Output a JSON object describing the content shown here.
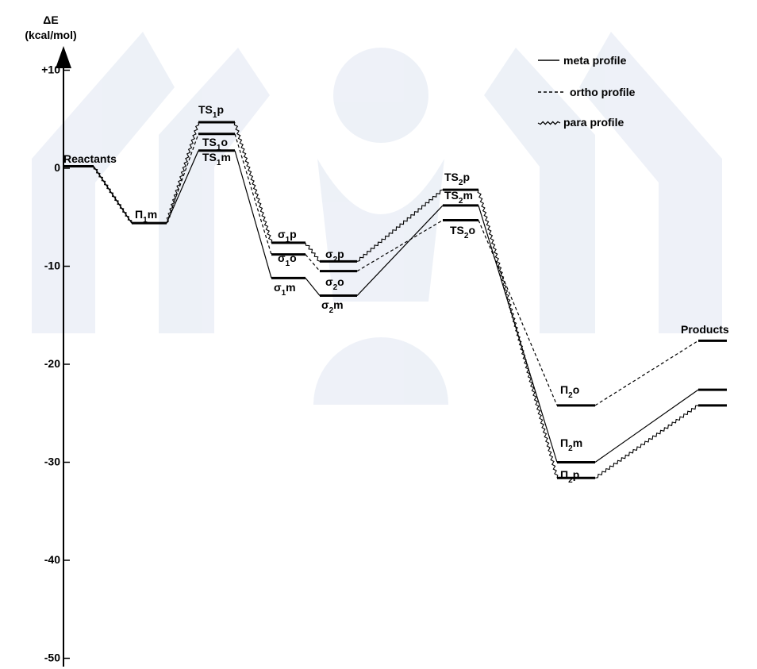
{
  "chart_data": {
    "type": "line",
    "title": "",
    "ylabel_line1": "ΔE",
    "ylabel_line2": "(kcal/mol)",
    "ylim": [
      -55,
      11
    ],
    "yticks": [
      10,
      0,
      -10,
      -20,
      -30,
      -40,
      -50
    ],
    "ytick_labels": [
      "+10",
      "0",
      "-10",
      "-20",
      "-30",
      "-40",
      "-50"
    ],
    "grid": false,
    "legend_position": "top-right",
    "legend": [
      {
        "name": "meta profile",
        "style": "solid"
      },
      {
        "name": "ortho profile",
        "style": "dashed"
      },
      {
        "name": "para profile",
        "style": "wavy"
      }
    ],
    "stages": [
      "Reactants",
      "Π1",
      "TS1",
      "σ1",
      "σ2",
      "TS2",
      "Π2",
      "Products"
    ],
    "series": [
      {
        "name": "meta profile",
        "style": "solid",
        "values": [
          0.2,
          -5.6,
          1.8,
          -11.2,
          -13.0,
          -3.8,
          -30.0,
          -22.6
        ]
      },
      {
        "name": "ortho profile",
        "style": "dashed",
        "values": [
          0.2,
          -5.6,
          3.5,
          -8.8,
          -10.5,
          -5.3,
          -24.2,
          -17.6
        ]
      },
      {
        "name": "para profile",
        "style": "wavy",
        "values": [
          0.2,
          -5.6,
          4.7,
          -7.6,
          -9.5,
          -2.2,
          -31.6,
          -24.2
        ]
      }
    ],
    "level_labels": [
      {
        "text": "Reactants"
      },
      {
        "text": "Π",
        "sub": "1",
        "suffix": "m"
      },
      {
        "text": "TS",
        "sub": "1",
        "suffix": "p"
      },
      {
        "text": "TS",
        "sub": "1",
        "suffix": "o"
      },
      {
        "text": "TS",
        "sub": "1",
        "suffix": "m"
      },
      {
        "text": "σ",
        "sub": "1",
        "suffix": "p"
      },
      {
        "text": "σ",
        "sub": "1",
        "suffix": "o"
      },
      {
        "text": "σ",
        "sub": "1",
        "suffix": "m"
      },
      {
        "text": "σ",
        "sub": "2",
        "suffix": "p"
      },
      {
        "text": "σ",
        "sub": "2",
        "suffix": "o"
      },
      {
        "text": "σ",
        "sub": "2",
        "suffix": "m"
      },
      {
        "text": "TS",
        "sub": "2",
        "suffix": "p"
      },
      {
        "text": "TS",
        "sub": "2",
        "suffix": "m"
      },
      {
        "text": "TS",
        "sub": "2",
        "suffix": "o"
      },
      {
        "text": "Π",
        "sub": "2",
        "suffix": "o"
      },
      {
        "text": "Π",
        "sub": "2",
        "suffix": "m"
      },
      {
        "text": "Π",
        "sub": "2",
        "suffix": "p"
      },
      {
        "text": "Products"
      }
    ]
  },
  "colors": {
    "ink": "#000000",
    "watermark": "#9fb3d6",
    "background": "#ffffff"
  }
}
